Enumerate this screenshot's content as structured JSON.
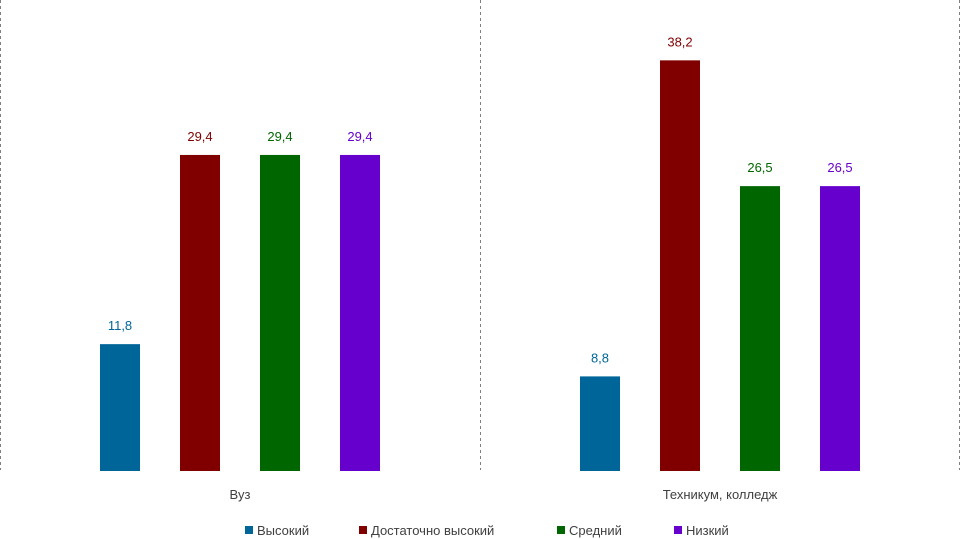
{
  "chart_data": {
    "type": "bar",
    "categories": [
      "Вуз",
      "Техникум, колледж"
    ],
    "series": [
      {
        "name": "Высокий",
        "color": "#006699",
        "values": [
          11.8,
          8.8
        ],
        "labels": [
          "11,8",
          "8,8"
        ]
      },
      {
        "name": "Достаточно высокий",
        "color": "#800000",
        "values": [
          29.4,
          38.2
        ],
        "labels": [
          "29,4",
          "38,2"
        ]
      },
      {
        "name": "Средний",
        "color": "#006600",
        "values": [
          29.4,
          26.5
        ],
        "labels": [
          "29,4",
          "26,5"
        ]
      },
      {
        "name": "Низкий",
        "color": "#6600CC",
        "values": [
          29.4,
          26.5
        ],
        "labels": [
          "29,4",
          "26,5"
        ]
      }
    ],
    "title": "",
    "xlabel": "",
    "ylabel": "",
    "ylim": [
      0,
      40
    ],
    "grid": false,
    "legend": "bottom"
  }
}
